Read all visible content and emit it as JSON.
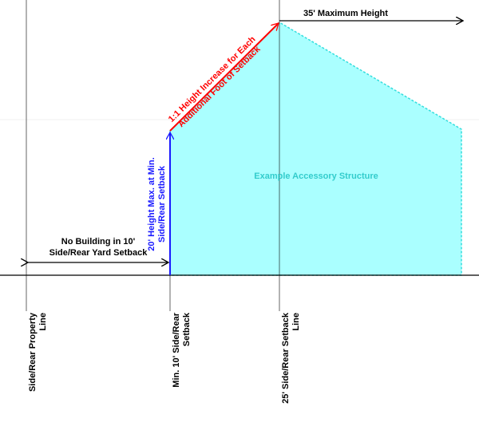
{
  "colors": {
    "structure_fill": "#aaffff",
    "structure_stroke": "#33dddd",
    "structure_text": "#33cccc",
    "red": "#ff0000",
    "blue": "#1a1aff",
    "black": "#000000"
  },
  "labels": {
    "max_height": "35' Maximum Height",
    "slope_line1": "1:1 Height Increase for Each",
    "slope_line2": "Additional Foot of Setback",
    "min_height_line1": "20' Height Max. at Min.",
    "min_height_line2": "Side/Rear Setback",
    "no_building_line1": "No Building in 10'",
    "no_building_line2": "Side/Rear Yard Setback",
    "structure": "Example Accessory Structure",
    "property_line1": "Side/Rear Property",
    "property_line2": "Line",
    "min_setback_line1": "Min. 10' Side/Rear",
    "min_setback_line2": "Setback",
    "setback25_line1": "25' Side/Rear Setback",
    "setback25_line2": "Line"
  }
}
